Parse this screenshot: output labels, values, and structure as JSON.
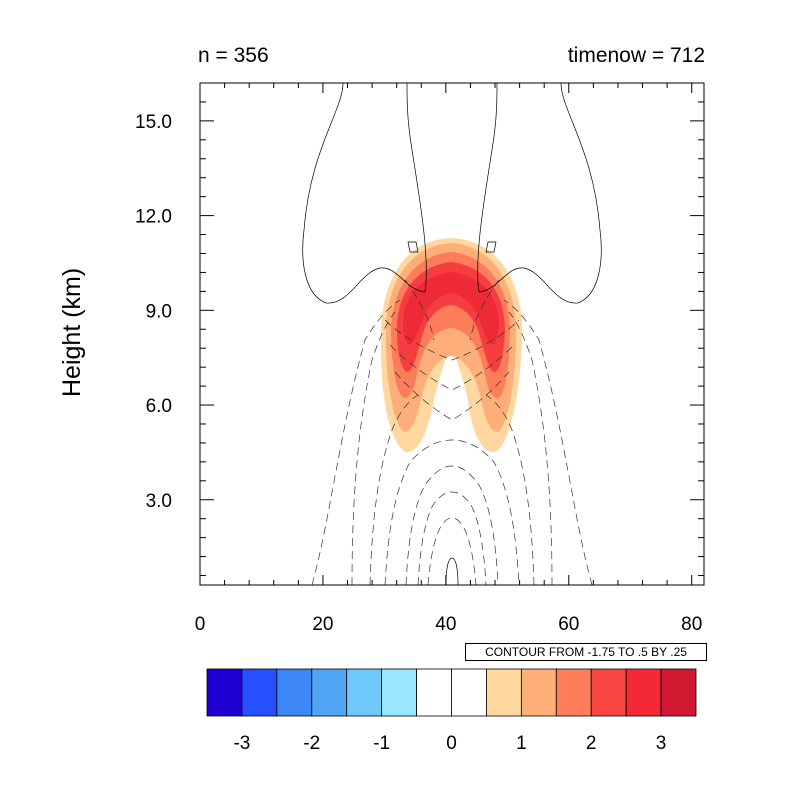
{
  "header": {
    "left_text": "n = 356",
    "right_text": "timenow = 712"
  },
  "contour_info": "CONTOUR FROM -1.75 TO .5 BY .25",
  "chart_data": {
    "type": "heatmap",
    "title": "",
    "xlabel": "",
    "ylabel": "Height (km)",
    "xlim": [
      0,
      82
    ],
    "ylim": [
      0.3,
      16.2
    ],
    "x_ticks": [
      0,
      20,
      40,
      60,
      80
    ],
    "x_tick_labels": [
      "0",
      "20",
      "40",
      "60",
      "80"
    ],
    "y_ticks": [
      3.0,
      6.0,
      9.0,
      12.0,
      15.0
    ],
    "y_tick_labels": [
      "3.0",
      "6.0",
      "9.0",
      "12.0",
      "15.0"
    ],
    "shaded_field": {
      "description_levels": [
        {
          "level": 0.5,
          "color": "#fed8a0"
        },
        {
          "level": 1.0,
          "color": "#feae78"
        },
        {
          "level": 1.5,
          "color": "#fd7d5a"
        },
        {
          "level": 2.0,
          "color": "#f63d40"
        },
        {
          "level": 2.5,
          "color": "#ee2a36"
        }
      ]
    },
    "line_contours": {
      "min": -1.75,
      "max": 0.5,
      "interval": 0.25,
      "negative_style": "dashed",
      "positive_style": "solid"
    },
    "colorbar": {
      "colors": [
        "#1e00d2",
        "#2650ff",
        "#3c87f5",
        "#50a5f5",
        "#6ec8fa",
        "#9be6ff",
        "#ffffff",
        "#ffffff",
        "#ffd8a0",
        "#ffaf78",
        "#ff7d5a",
        "#fa4641",
        "#f52836",
        "#d21932"
      ],
      "tick_labels": [
        "-3",
        "-2",
        "-1",
        "0",
        "1",
        "2",
        "3"
      ],
      "tick_values": [
        -3,
        -2,
        -1,
        0,
        1,
        2,
        3
      ],
      "range": [
        -3.5,
        3.5
      ]
    }
  }
}
